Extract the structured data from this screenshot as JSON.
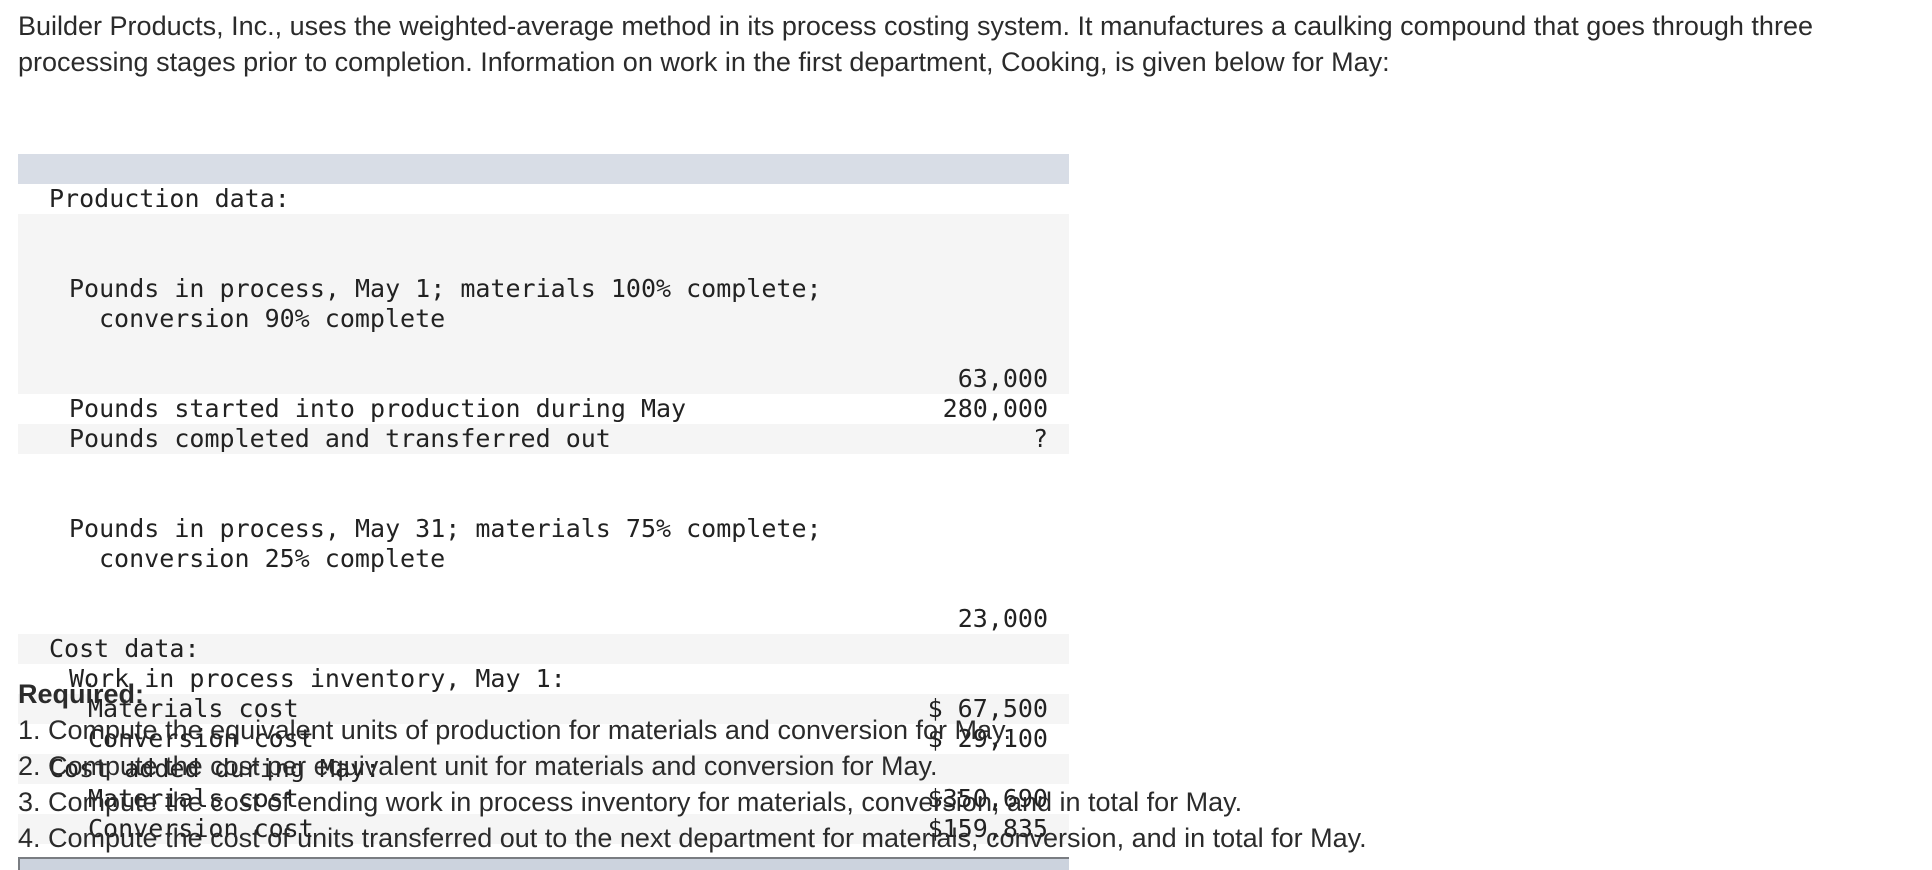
{
  "intro": {
    "text": "Builder Products, Inc., uses the weighted-average method in its process costing system. It manufactures a caulking compound that goes through three processing stages prior to completion. Information on work in the first department, Cooking, is given below for May:"
  },
  "table": {
    "header_color": "#d8dde6",
    "alt_row_color": "#f5f5f5",
    "rows": [
      {
        "lines": [
          "Production data:"
        ],
        "value": "",
        "indent": 0
      },
      {
        "lines": [
          "Pounds in process, May 1; materials 100% complete;",
          "conversion 90% complete"
        ],
        "value": "63,000",
        "indent": 1
      },
      {
        "lines": [
          "Pounds started into production during May"
        ],
        "value": "280,000",
        "indent": 1
      },
      {
        "lines": [
          "Pounds completed and transferred out"
        ],
        "value": "?",
        "indent": 1
      },
      {
        "lines": [
          "Pounds in process, May 31; materials 75% complete;",
          "conversion 25% complete"
        ],
        "value": "23,000",
        "indent": 1
      },
      {
        "lines": [
          "Cost data:"
        ],
        "value": "",
        "indent": 0
      },
      {
        "lines": [
          "Work in process inventory, May 1:"
        ],
        "value": "",
        "indent": 1
      },
      {
        "lines": [
          "Materials cost"
        ],
        "value": "$ 67,500",
        "indent": 2
      },
      {
        "lines": [
          "Conversion cost"
        ],
        "value": "$ 29,100",
        "indent": 2
      },
      {
        "lines": [
          "Cost added during May:"
        ],
        "value": "",
        "indent": 0
      },
      {
        "lines": [
          "Materials cost"
        ],
        "value": "$350,690",
        "indent": 2
      },
      {
        "lines": [
          "Conversion cost"
        ],
        "value": "$159,835",
        "indent": 2
      }
    ]
  },
  "required": {
    "title": "Required:",
    "items": [
      "1. Compute the equivalent units of production for materials and conversion for May.",
      "2. Compute the cost per equivalent unit for materials and conversion for May.",
      "3. Compute the cost of ending work in process inventory for materials, conversion, and in total for May.",
      "4. Compute the cost of units transferred out to the next department for materials, conversion, and in total for May."
    ]
  }
}
